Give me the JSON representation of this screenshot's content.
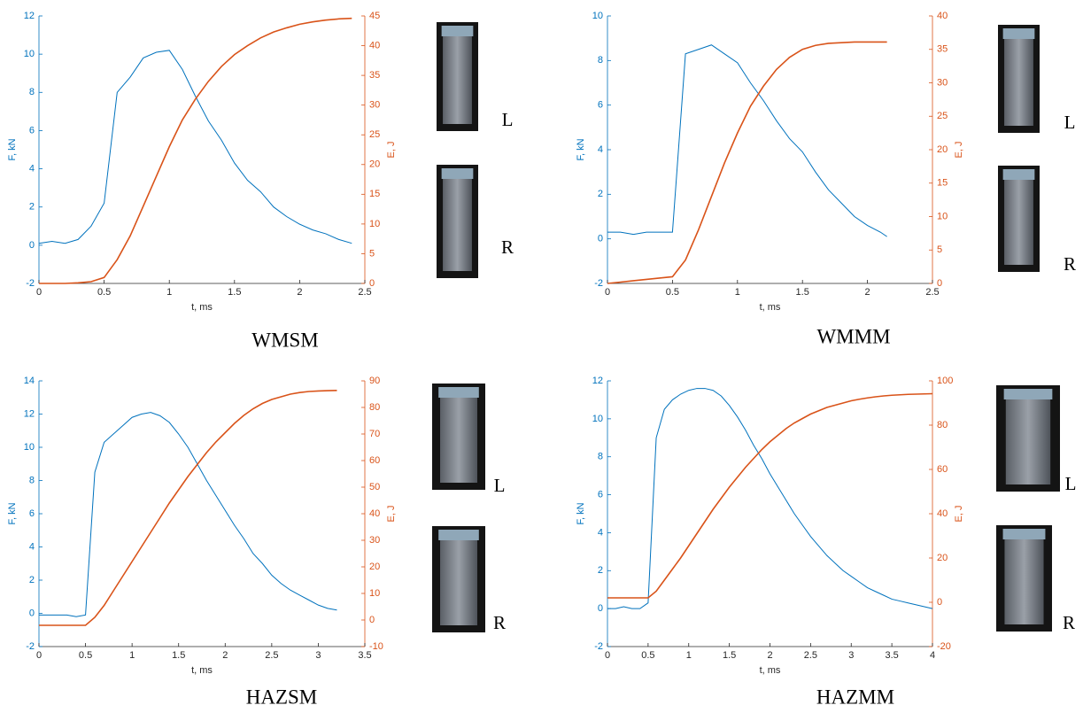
{
  "chart_data": [
    {
      "type": "line",
      "title": "WMSM",
      "xlabel": "t, ms",
      "ylabel": "F, kN",
      "y2label": "E, J",
      "annotations": [
        "L",
        "R"
      ],
      "x": [
        0,
        0.1,
        0.2,
        0.3,
        0.4,
        0.5,
        0.6,
        0.7,
        0.8,
        0.9,
        1.0,
        1.1,
        1.2,
        1.3,
        1.4,
        1.5,
        1.6,
        1.7,
        1.8,
        1.9,
        2.0,
        2.1,
        2.2,
        2.3,
        2.4
      ],
      "series": [
        {
          "color": "#0072bd",
          "values": [
            0.1,
            0.2,
            0.1,
            0.3,
            1.0,
            2.2,
            8.0,
            8.8,
            9.8,
            10.1,
            10.2,
            9.2,
            7.8,
            6.5,
            5.5,
            4.3,
            3.4,
            2.8,
            2.0,
            1.5,
            1.1,
            0.8,
            0.6,
            0.3,
            0.1
          ]
        },
        {
          "color": "#d95319",
          "axis": "y2",
          "values": [
            0,
            0,
            0,
            0.1,
            0.3,
            1,
            4,
            8,
            13,
            18,
            23,
            27.5,
            31,
            34,
            36.5,
            38.5,
            40,
            41.3,
            42.3,
            43,
            43.6,
            44,
            44.3,
            44.5,
            44.6
          ]
        }
      ],
      "xlim": [
        0,
        2.5
      ],
      "xticks": [
        0,
        0.5,
        1,
        1.5,
        2,
        2.5
      ],
      "ylim": [
        -2,
        12
      ],
      "yticks": [
        -2,
        0,
        2,
        4,
        6,
        8,
        10,
        12
      ],
      "y2lim": [
        0,
        45
      ],
      "y2ticks": [
        0,
        5,
        10,
        15,
        20,
        25,
        30,
        35,
        40,
        45
      ]
    },
    {
      "type": "line",
      "title": "WMMM",
      "xlabel": "t, ms",
      "ylabel": "F, kN",
      "y2label": "E, J",
      "annotations": [
        "L",
        "R"
      ],
      "x": [
        0,
        0.1,
        0.2,
        0.3,
        0.4,
        0.5,
        0.6,
        0.7,
        0.8,
        0.9,
        1.0,
        1.1,
        1.2,
        1.3,
        1.4,
        1.5,
        1.6,
        1.7,
        1.8,
        1.9,
        2.0,
        2.1,
        2.15
      ],
      "series": [
        {
          "color": "#0072bd",
          "values": [
            0.3,
            0.3,
            0.2,
            0.3,
            0.3,
            0.3,
            8.3,
            8.5,
            8.7,
            8.3,
            7.9,
            7.0,
            6.2,
            5.3,
            4.5,
            3.9,
            3.0,
            2.2,
            1.6,
            1.0,
            0.6,
            0.3,
            0.1
          ]
        },
        {
          "color": "#d95319",
          "axis": "y2",
          "values": [
            0,
            0.2,
            0.4,
            0.6,
            0.8,
            1.0,
            3.5,
            8,
            13,
            18,
            22.5,
            26.5,
            29.5,
            32,
            33.8,
            35,
            35.6,
            35.9,
            36,
            36.1,
            36.1,
            36.1,
            36.1
          ]
        }
      ],
      "xlim": [
        0,
        2.5
      ],
      "xticks": [
        0,
        0.5,
        1,
        1.5,
        2,
        2.5
      ],
      "ylim": [
        -2,
        10
      ],
      "yticks": [
        -2,
        0,
        2,
        4,
        6,
        8,
        10
      ],
      "y2lim": [
        0,
        40
      ],
      "y2ticks": [
        0,
        5,
        10,
        15,
        20,
        25,
        30,
        35,
        40
      ]
    },
    {
      "type": "line",
      "title": "HAZSM",
      "xlabel": "t, ms",
      "ylabel": "F, kN",
      "y2label": "E, J",
      "annotations": [
        "L",
        "R"
      ],
      "x": [
        0,
        0.1,
        0.2,
        0.3,
        0.4,
        0.5,
        0.6,
        0.7,
        0.8,
        0.9,
        1.0,
        1.1,
        1.2,
        1.3,
        1.4,
        1.5,
        1.6,
        1.7,
        1.8,
        1.9,
        2.0,
        2.1,
        2.2,
        2.3,
        2.4,
        2.5,
        2.6,
        2.7,
        2.8,
        2.9,
        3.0,
        3.1,
        3.2
      ],
      "series": [
        {
          "color": "#0072bd",
          "values": [
            -0.1,
            -0.1,
            -0.1,
            -0.1,
            -0.2,
            -0.1,
            8.5,
            10.3,
            10.8,
            11.3,
            11.8,
            12.0,
            12.1,
            11.9,
            11.5,
            10.8,
            10.0,
            9.0,
            8.0,
            7.1,
            6.2,
            5.3,
            4.5,
            3.6,
            3.0,
            2.3,
            1.8,
            1.4,
            1.1,
            0.8,
            0.5,
            0.3,
            0.2
          ]
        },
        {
          "color": "#d95319",
          "axis": "y2",
          "values": [
            -2,
            -2,
            -2,
            -2,
            -2,
            -2,
            1,
            5.5,
            11,
            16.5,
            22,
            27.5,
            33,
            38.5,
            44,
            49,
            54,
            58.5,
            63,
            67,
            70.5,
            74,
            77,
            79.5,
            81.5,
            83,
            84,
            85,
            85.6,
            86,
            86.2,
            86.3,
            86.4
          ]
        }
      ],
      "xlim": [
        0,
        3.5
      ],
      "xticks": [
        0,
        0.5,
        1,
        1.5,
        2,
        2.5,
        3,
        3.5
      ],
      "ylim": [
        -2,
        14
      ],
      "yticks": [
        -2,
        0,
        2,
        4,
        6,
        8,
        10,
        12,
        14
      ],
      "y2lim": [
        -10,
        90
      ],
      "y2ticks": [
        -10,
        0,
        10,
        20,
        30,
        40,
        50,
        60,
        70,
        80,
        90
      ]
    },
    {
      "type": "line",
      "title": "HAZMM",
      "xlabel": "t, ms",
      "ylabel": "F, kN",
      "y2label": "E, J",
      "annotations": [
        "L",
        "R"
      ],
      "x": [
        0,
        0.1,
        0.2,
        0.3,
        0.4,
        0.5,
        0.6,
        0.7,
        0.8,
        0.9,
        1.0,
        1.1,
        1.2,
        1.3,
        1.4,
        1.5,
        1.6,
        1.7,
        1.8,
        1.9,
        2.0,
        2.1,
        2.2,
        2.3,
        2.4,
        2.5,
        2.6,
        2.7,
        2.8,
        2.9,
        3.0,
        3.1,
        3.2,
        3.3,
        3.4,
        3.5,
        3.6,
        3.7,
        3.8,
        3.9,
        4.0
      ],
      "series": [
        {
          "color": "#0072bd",
          "values": [
            0,
            0,
            0.1,
            0,
            0,
            0.3,
            9.0,
            10.5,
            11.0,
            11.3,
            11.5,
            11.6,
            11.6,
            11.5,
            11.2,
            10.7,
            10.1,
            9.4,
            8.6,
            7.9,
            7.1,
            6.4,
            5.7,
            5.0,
            4.4,
            3.8,
            3.3,
            2.8,
            2.4,
            2.0,
            1.7,
            1.4,
            1.1,
            0.9,
            0.7,
            0.5,
            0.4,
            0.3,
            0.2,
            0.1,
            0.0
          ]
        },
        {
          "color": "#d95319",
          "axis": "y2",
          "values": [
            2,
            2,
            2,
            2,
            2,
            2,
            5,
            10,
            15,
            20,
            25.5,
            31,
            36.5,
            42,
            47,
            52,
            56.5,
            61,
            65,
            69,
            72.5,
            75.5,
            78.5,
            81,
            83,
            85,
            86.5,
            88,
            89,
            90,
            91,
            91.7,
            92.3,
            92.8,
            93.2,
            93.5,
            93.7,
            93.9,
            94,
            94.1,
            94.2
          ]
        }
      ],
      "xlim": [
        0,
        4
      ],
      "xticks": [
        0,
        0.5,
        1,
        1.5,
        2,
        2.5,
        3,
        3.5,
        4
      ],
      "ylim": [
        -2,
        12
      ],
      "yticks": [
        -2,
        0,
        2,
        4,
        6,
        8,
        10,
        12
      ],
      "y2lim": [
        -20,
        100
      ],
      "y2ticks": [
        -20,
        0,
        20,
        40,
        60,
        80,
        100
      ]
    }
  ]
}
